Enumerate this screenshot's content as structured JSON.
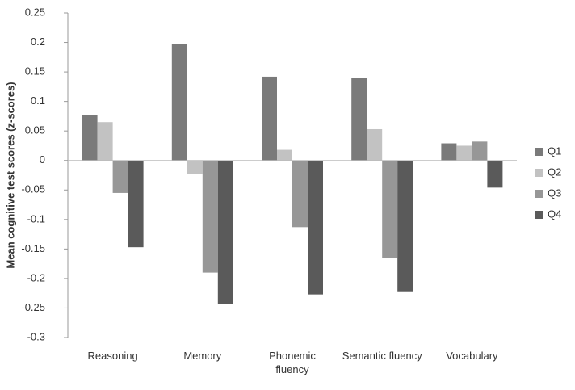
{
  "chart_data": {
    "type": "bar",
    "y_label": "Mean cognitive test scores (z-scores)",
    "categories": [
      "Reasoning",
      "Memory",
      "Phonemic fluency",
      "Semantic fluency",
      "Vocabulary"
    ],
    "series": [
      {
        "name": "Q1",
        "color": "#7a7a7a",
        "values": [
          0.077,
          0.197,
          0.142,
          0.14,
          0.029
        ]
      },
      {
        "name": "Q2",
        "color": "#c2c2c2",
        "values": [
          0.065,
          -0.023,
          0.018,
          0.053,
          0.025
        ]
      },
      {
        "name": "Q3",
        "color": "#979797",
        "values": [
          -0.055,
          -0.19,
          -0.113,
          -0.165,
          0.032
        ]
      },
      {
        "name": "Q4",
        "color": "#5a5a5a",
        "values": [
          -0.147,
          -0.243,
          -0.227,
          -0.223,
          -0.046
        ]
      }
    ],
    "ylim": [
      -0.3,
      0.25
    ],
    "yticks": [
      -0.3,
      -0.25,
      -0.2,
      -0.15,
      -0.1,
      -0.05,
      0,
      0.05,
      0.1,
      0.15,
      0.2,
      0.25
    ],
    "grid": false,
    "legend": "right"
  }
}
